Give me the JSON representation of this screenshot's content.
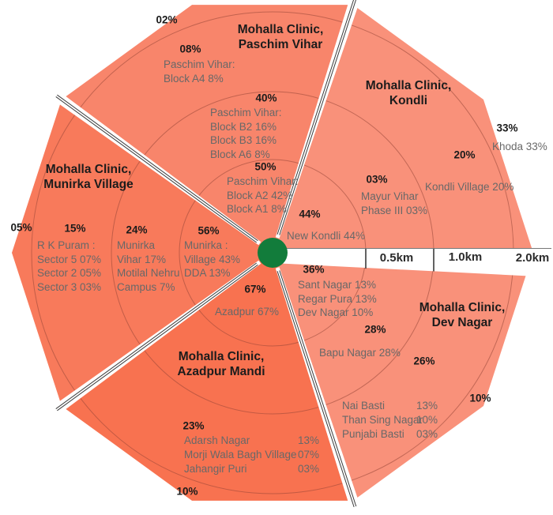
{
  "diagram": {
    "name": "Mohalla Clinic patient catchment by distance rings",
    "palette": {
      "center_marker": "#127C3B",
      "ring_line": "rgba(150,70,55,0.55)",
      "gap_line": "#3c3c3c",
      "band_border": "#777777",
      "tick": "#3c3c3c"
    },
    "clinics": [
      {
        "id": "kondli",
        "name": "Mohalla Clinic, Kondli",
        "color": "#F9917A"
      },
      {
        "id": "paschim_vihar",
        "name": "Mohalla Clinic, Paschim Vihar",
        "color": "#F8856B"
      },
      {
        "id": "munirka_village",
        "name": "Mohalla Clinic, Munirka Village",
        "color": "#F87A5B"
      },
      {
        "id": "azadpur_mandi",
        "name": "Mohalla Clinic, Azadpur Mandi",
        "color": "#F87250"
      },
      {
        "id": "dev_nagar",
        "name": "Mohalla Clinic, Dev Nagar",
        "color": "#F9917A"
      }
    ],
    "scale_bar": {
      "labels": [
        "0.5km",
        "1.0km",
        "2.0km"
      ]
    }
  },
  "labels": {
    "pv_title": "Mohalla Clinic,\nPaschim Vihar",
    "pv_r4_pct": "02%",
    "pv_r3_pct": "08%",
    "pv_r3_detail": "Paschim Vihar:\nBlock A4  8%",
    "pv_r2_pct": "40%",
    "pv_r2_detail": "Paschim Vihar:\nBlock B2 16%\nBlock B3  16%\nBlock A6   8%",
    "pv_r1_pct": "50%",
    "pv_r1_detail": "Paschim Vihar:\nBlock A2 42%\nBlock A1   8%",
    "ko_title": "Mohalla Clinic,\nKondli",
    "ko_r4_pct": "33%",
    "ko_r4_detail": "Khoda 33%",
    "ko_r3_pct": "20%",
    "ko_r3_detail": "Kondli Village 20%",
    "ko_r2_pct": "03%",
    "ko_r2_detail": "Mayur Vihar\nPhase III   03%",
    "ko_r1_pct": "44%",
    "ko_r1_detail": "New Kondli 44%",
    "km_05": "0.5km",
    "km_10": "1.0km",
    "km_20": "2.0km",
    "dn_r1_pct": "36%",
    "dn_r1_detail": "Sant Nagar  13%\nRegar Pura  13%\nDev Nagar   10%",
    "dn_r2_pct": "28%",
    "dn_r2_detail": "Bapu Nagar 28%",
    "dn_title": "Mohalla Clinic,\nDev Nagar",
    "dn_r3_pct": "26%",
    "dn_r3_names": "Nai Basti\nThan Sing Nagar\nPunjabi Basti",
    "dn_r3_values": "13%\n10%\n03%",
    "dn_r4_pct": "10%",
    "az_r1_pct": "67%",
    "az_r1_detail": "Azadpur 67%",
    "az_title": "Mohalla Clinic,\nAzadpur Mandi",
    "az_r3_pct": "23%",
    "az_r3_names": "Adarsh Nagar\nMorji Wala Bagh Village\nJahangir Puri",
    "az_r3_values": "13%\n07%\n03%",
    "az_r4_pct": "10%",
    "mv_title": "Mohalla Clinic,\nMunirka Village",
    "mv_r1_pct": "56%",
    "mv_r1_detail": "Munirka :\nVillage  43%\nDDA      13%",
    "mv_r2_pct": "24%",
    "mv_r2_detail": "Munirka\nVihar 17%\nMotilal Nehru\nCampus 7%",
    "mv_r3_pct": "15%",
    "mv_r3_detail": "R K Puram :\nSector 5   07%\nSector 2   05%\nSector 3   03%",
    "mv_r4_pct": "05%"
  }
}
